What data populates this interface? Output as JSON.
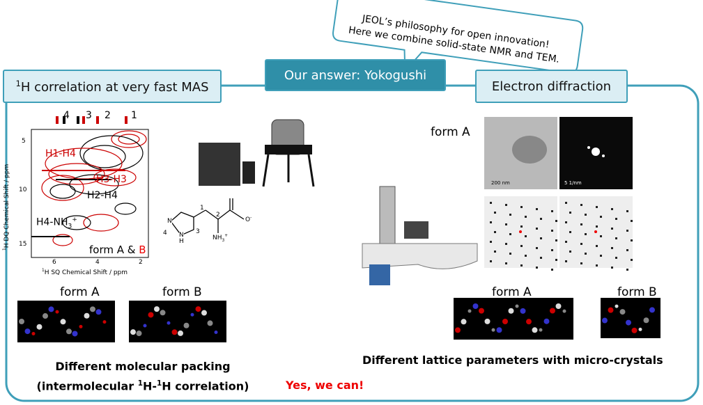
{
  "callout": {
    "line1": "JEOL’s philosophy for open innovation!",
    "line2": "Here we combine solid-state NMR and TEM."
  },
  "tabs": {
    "center": "Our answer: Yokogushi",
    "left": {
      "sup": "1",
      "text": "H correlation at very fast MAS"
    },
    "right": "Electron diffraction"
  },
  "nmr": {
    "peaks": [
      "4",
      "3",
      "2",
      "1"
    ],
    "labels": {
      "h1h4": "H1-H4",
      "h3h3": "H3-H3",
      "h2h4": "H2-H4",
      "h4nh3": {
        "main": "H4-NH",
        "sub": "3",
        "sup": "+"
      }
    },
    "forms": {
      "black": "form A &",
      "red": "B"
    },
    "y_axis": {
      "sup": "1",
      "text": "H DQ Chemical Shift / ppm"
    },
    "x_axis": {
      "sup": "1",
      "text": "H SQ Chemical Shift / ppm"
    },
    "yticks": [
      "5",
      "10",
      "15"
    ],
    "xticks": [
      "6",
      "4",
      "2"
    ]
  },
  "molecule": {
    "numbers": [
      "1",
      "2",
      "3",
      "4"
    ],
    "amine": {
      "main": "NH",
      "sub": "3",
      "sup": "+"
    },
    "oxygen": {
      "main": "O",
      "sup": "-"
    },
    "ring_n": "N",
    "ring_nh": "N\nH"
  },
  "tem": {
    "form": "form A",
    "scale1": "200 nm",
    "scale2": "5 1/nm"
  },
  "left_forms": [
    "form A",
    "form B"
  ],
  "right_forms": [
    "form A",
    "form B"
  ],
  "left_caption": {
    "line1": "Different molecular packing",
    "line2": {
      "a": "(intermolecular ",
      "s1": "1",
      "b": "H-",
      "s2": "1",
      "c": "H correlation)"
    }
  },
  "right_caption": "Different lattice parameters with micro-crystals",
  "conclusion": "Yes, we can!"
}
